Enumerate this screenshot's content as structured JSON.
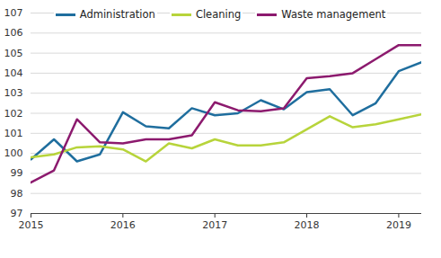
{
  "chart_data": {
    "type": "line",
    "x": [
      2015,
      2015.25,
      2015.5,
      2015.75,
      2016,
      2016.25,
      2016.5,
      2016.75,
      2017,
      2017.25,
      2017.5,
      2017.75,
      2018,
      2018.25,
      2018.5,
      2018.75,
      2019,
      2019.25
    ],
    "xlim": [
      2015,
      2019.25
    ],
    "xticks": [
      2015,
      2016,
      2017,
      2018,
      2019
    ],
    "ylim": [
      97,
      107
    ],
    "yticks": [
      97,
      98,
      99,
      100,
      101,
      102,
      103,
      104,
      105,
      106,
      107
    ],
    "grid": true,
    "legend": "top",
    "series": [
      {
        "name": "Administration",
        "color": "#1f6e9e",
        "values": [
          99.7,
          100.7,
          99.6,
          99.95,
          102.05,
          101.35,
          101.25,
          102.25,
          101.9,
          102.0,
          102.65,
          102.2,
          103.05,
          103.2,
          101.9,
          102.5,
          104.1,
          104.55
        ]
      },
      {
        "name": "Cleaning",
        "color": "#b7d43b",
        "values": [
          99.8,
          99.95,
          100.3,
          100.35,
          100.2,
          99.6,
          100.5,
          100.25,
          100.7,
          100.4,
          100.4,
          100.55,
          101.2,
          101.85,
          101.3,
          101.45,
          101.7,
          101.95
        ]
      },
      {
        "name": "Waste management",
        "color": "#8c1a6e",
        "values": [
          98.55,
          99.15,
          101.7,
          100.55,
          100.5,
          100.7,
          100.7,
          100.9,
          102.55,
          102.15,
          102.1,
          102.25,
          103.75,
          103.85,
          104.0,
          104.7,
          105.4,
          105.4
        ]
      }
    ]
  }
}
